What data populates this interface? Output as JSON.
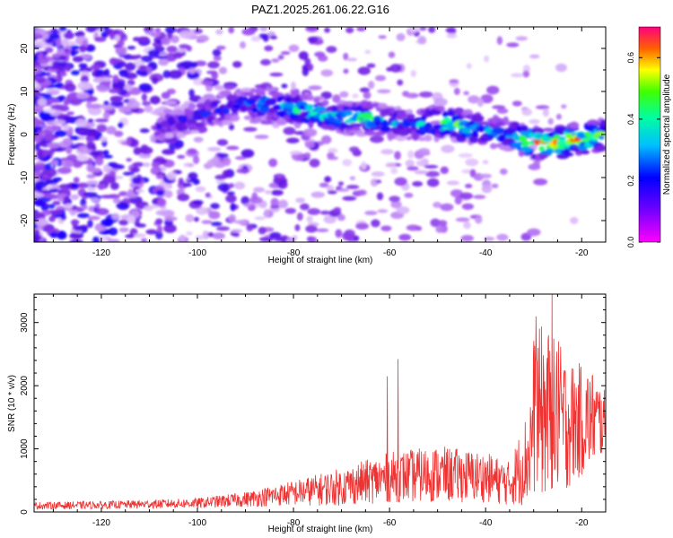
{
  "page": {
    "title": "PAZ1.2025.261.06.22.G16"
  },
  "chart_data": [
    {
      "type": "heatmap",
      "title": "PAZ1.2025.261.06.22.G16",
      "xlabel": "Height of straight line (km)",
      "ylabel": "Frequency (Hz)",
      "xlim": [
        -134,
        -15
      ],
      "ylim": [
        -25,
        25
      ],
      "x_ticks": [
        -120,
        -100,
        -80,
        -60,
        -40,
        -20
      ],
      "y_ticks": [
        -20,
        -10,
        0,
        10,
        20
      ],
      "colorbar": {
        "label": "Normalized spectral amplitude",
        "range": [
          0,
          0.7
        ],
        "ticks": [
          "0.0",
          "0.2",
          "0.4",
          "0.6"
        ],
        "tick_values": [
          0,
          0.2,
          0.4,
          0.6
        ],
        "colors": [
          "#ffffff",
          "#d8b8f8",
          "#9040f0",
          "#6010e0",
          "#0000ff",
          "#00a0ff",
          "#00ffc0",
          "#40ff00",
          "#ffff00",
          "#ff8000",
          "#ff0000",
          "#ff0080"
        ]
      },
      "ridge": {
        "x": [
          -108,
          -100,
          -92,
          -85,
          -80,
          -75,
          -70,
          -65,
          -60,
          -55,
          -50,
          -45,
          -40,
          -35,
          -30,
          -25,
          -20,
          -15
        ],
        "y": [
          2,
          4,
          7,
          7,
          6,
          5,
          4,
          4,
          3,
          2,
          3,
          2,
          1,
          0,
          -2,
          -2,
          -1,
          0
        ],
        "peak_amplitude": [
          0.2,
          0.25,
          0.3,
          0.35,
          0.4,
          0.45,
          0.4,
          0.45,
          0.35,
          0.3,
          0.45,
          0.5,
          0.35,
          0.4,
          0.6,
          0.65,
          0.6,
          0.5
        ]
      }
    },
    {
      "type": "line",
      "xlabel": "Height of straight line (km)",
      "ylabel": "SNR (10 * v/v)",
      "xlim": [
        -134,
        -15
      ],
      "ylim": [
        0,
        3450
      ],
      "x_ticks": [
        -120,
        -100,
        -80,
        -60,
        -40,
        -20
      ],
      "y_ticks": [
        0,
        1000,
        2000,
        3000
      ],
      "color": "#ee3333",
      "envelope": {
        "x": [
          -134,
          -120,
          -100,
          -90,
          -80,
          -70,
          -60,
          -50,
          -40,
          -35,
          -31,
          -30,
          -28,
          -26,
          -22,
          -18,
          -15
        ],
        "mean": [
          100,
          110,
          140,
          200,
          300,
          400,
          550,
          600,
          550,
          450,
          900,
          1500,
          1600,
          1500,
          1400,
          1500,
          1400
        ],
        "spread": [
          60,
          60,
          80,
          120,
          200,
          300,
          400,
          450,
          400,
          350,
          800,
          1300,
          1400,
          1300,
          1000,
          800,
          500
        ]
      },
      "spikes": [
        {
          "x": -58.2,
          "y": 2420
        },
        {
          "x": -60.5,
          "y": 2150
        },
        {
          "x": -29.5,
          "y": 3100
        },
        {
          "x": -26.2,
          "y": 3450
        },
        {
          "x": -24.8,
          "y": 2700
        }
      ]
    }
  ]
}
